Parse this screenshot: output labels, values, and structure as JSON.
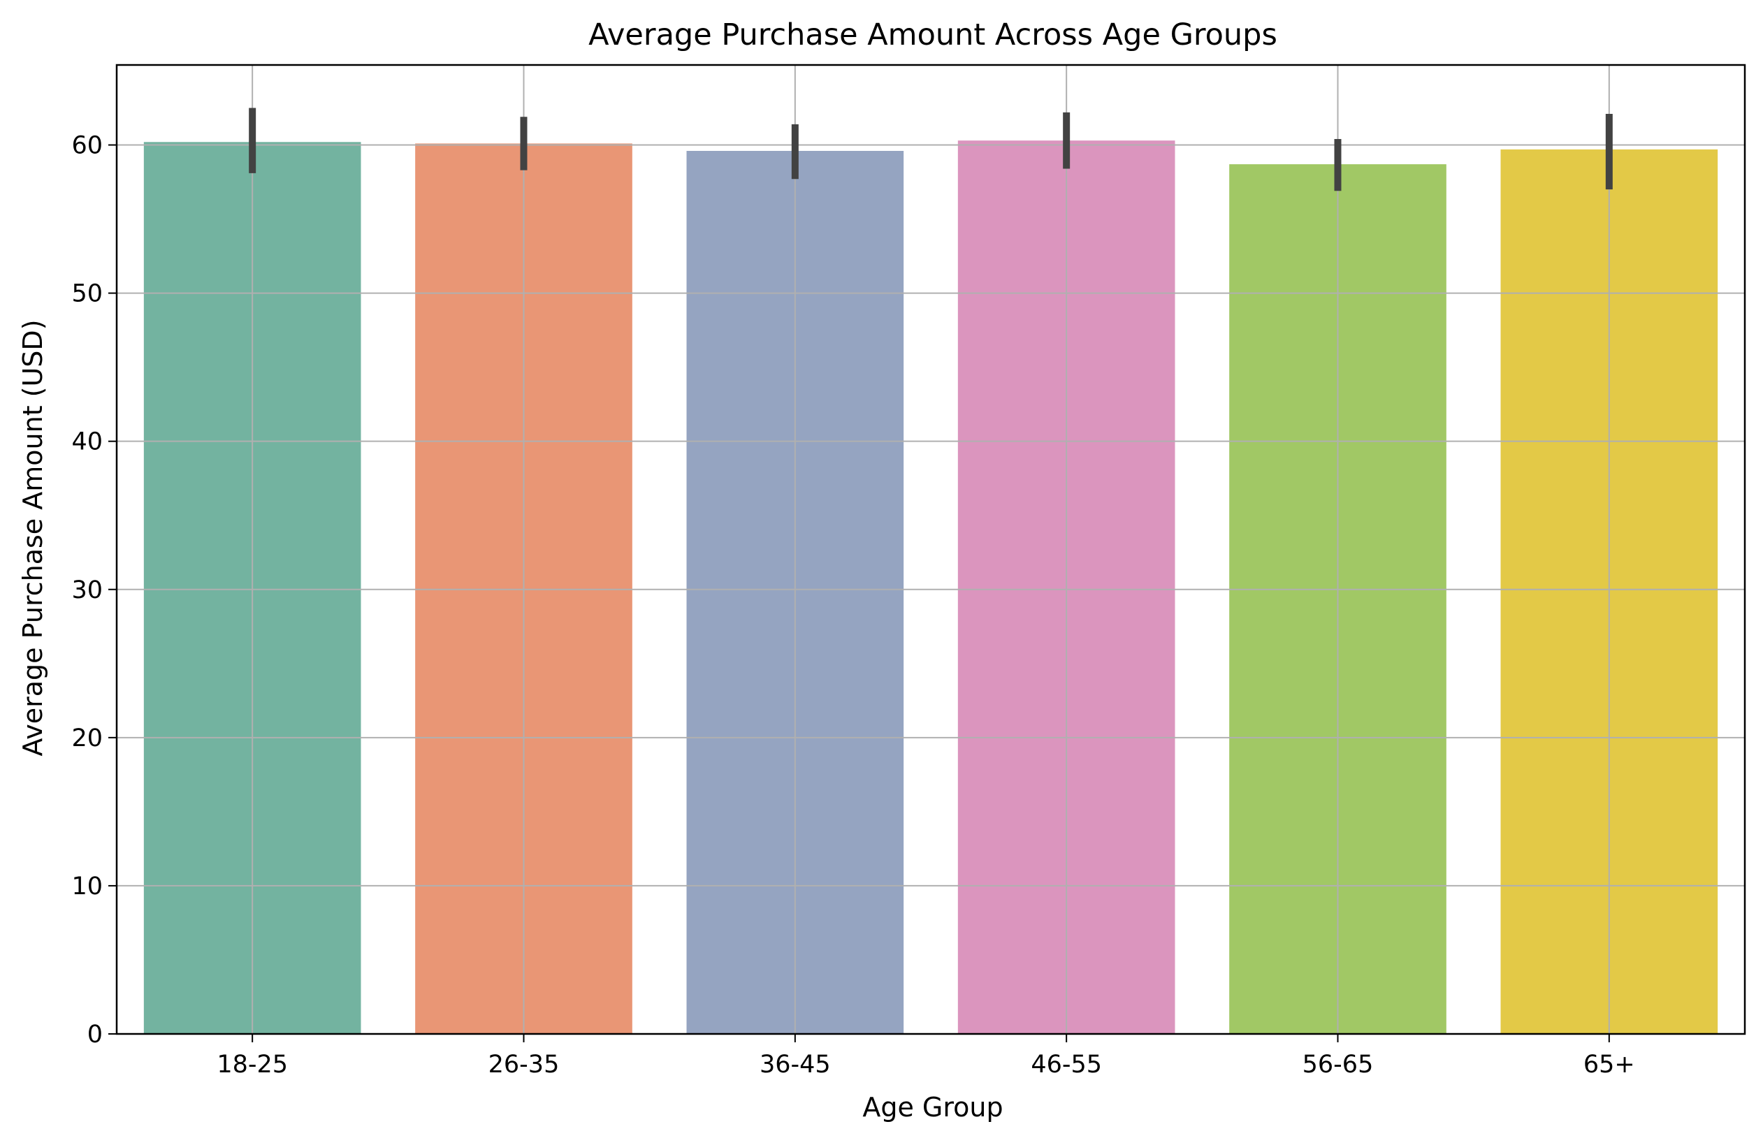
{
  "chart_data": {
    "type": "bar",
    "title": "Average Purchase Amount Across Age Groups",
    "xlabel": "Age Group",
    "ylabel": "Average Purchase Amount (USD)",
    "categories": [
      "18-25",
      "26-35",
      "36-45",
      "46-55",
      "56-65",
      "65+"
    ],
    "values": [
      60.2,
      60.1,
      59.6,
      60.3,
      58.7,
      59.7
    ],
    "error_low": [
      58.1,
      58.3,
      57.7,
      58.4,
      56.9,
      57.0
    ],
    "error_high": [
      62.5,
      61.9,
      61.4,
      62.2,
      60.4,
      62.1
    ],
    "colors": [
      "#73b3a0",
      "#e99675",
      "#95a4c1",
      "#db95be",
      "#a1c865",
      "#e3c947"
    ],
    "error_color": "#424242",
    "grid_color": "#b0b0b0",
    "ylim": [
      0,
      65.4
    ],
    "yticks": [
      0,
      10,
      20,
      30,
      40,
      50,
      60
    ],
    "grid": true,
    "legend": "none"
  }
}
